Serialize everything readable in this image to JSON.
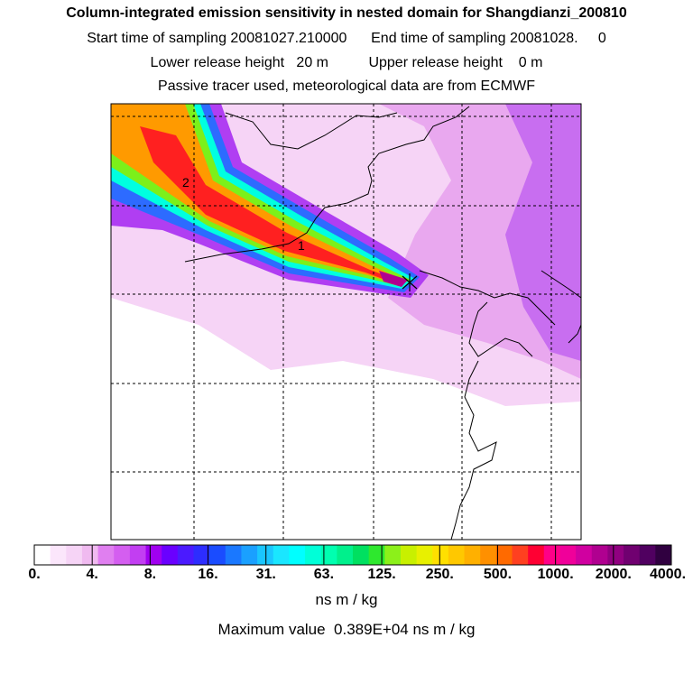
{
  "title": {
    "line1": "Column-integrated emission sensitivity in nested domain for Shangdianzi_200810",
    "line2": "Start time of sampling 20081027.210000      End time of sampling 20081028.     0",
    "line3": "Lower release height   20 m          Upper release height    0 m",
    "line4": "Passive tracer used, meteorological data are from ECMWF"
  },
  "map": {
    "labels": [
      "1",
      "2"
    ],
    "release_marker": "star-marker"
  },
  "colorbar": {
    "tick_labels": [
      "0.",
      "4.",
      "8.",
      "16.",
      "31.",
      "63.",
      "125.",
      "250.",
      "500.",
      "1000.",
      "2000.",
      "4000."
    ],
    "colors": [
      "#ffffff",
      "#fbe6fb",
      "#f6d4f6",
      "#f0baf0",
      "#e07ff0",
      "#d45ef0",
      "#c23ef2",
      "#a000f0",
      "#6a00ff",
      "#4b1aff",
      "#2d2dff",
      "#1a4cff",
      "#1a78ff",
      "#1aa0ff",
      "#1ac6ff",
      "#1ae6ff",
      "#00ffff",
      "#00ffd8",
      "#00ffb0",
      "#00f08c",
      "#00e060",
      "#2ee82e",
      "#8cf01a",
      "#c8f000",
      "#e8f000",
      "#ffe000",
      "#ffc800",
      "#ffb000",
      "#ff9000",
      "#ff6a00",
      "#ff4020",
      "#ff0033",
      "#ff0088",
      "#f0009a",
      "#d000a0",
      "#b00090",
      "#900080",
      "#700070",
      "#500060",
      "#300040"
    ],
    "units": "ns m / kg"
  },
  "max_value_text": "Maximum value  0.389E+04 ns m / kg"
}
